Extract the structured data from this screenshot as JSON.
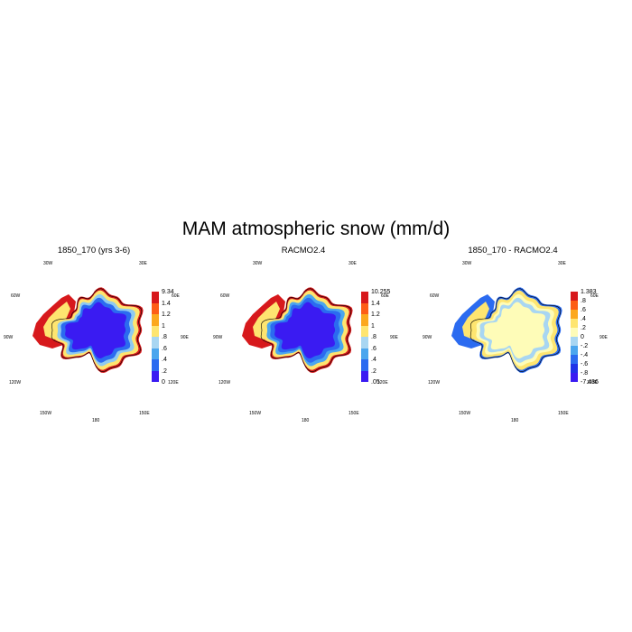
{
  "title": "MAM atmospheric snow (mm/d)",
  "lon_labels": {
    "n30w": "30W",
    "n30e": "30E",
    "w60": "60W",
    "e60": "60E",
    "w90": "90W",
    "e90": "90E",
    "w120": "120W",
    "e120": "120E",
    "s150w": "150W",
    "s150e": "150E",
    "s180": "180"
  },
  "panels": [
    {
      "title": "1850_170 (yrs 3-6)",
      "colorbar": {
        "labels": [
          "9.34",
          "1.4",
          "1.2",
          "1",
          ".8",
          ".6",
          ".4",
          ".2",
          "0"
        ],
        "colors": [
          "#d7191c",
          "#fd5d16",
          "#fca81d",
          "#fee570",
          "#a8d6f2",
          "#4ba6ee",
          "#2b6bf0",
          "#3a1bf2"
        ]
      },
      "fill": {
        "interior": "#3a1bf2",
        "ring1": "#2b6bf0",
        "ring2": "#8fcaf0",
        "ring3": "#fee570",
        "coast": "#d7191c"
      }
    },
    {
      "title": "RACMO2.4",
      "colorbar": {
        "labels": [
          "10.255",
          "1.4",
          "1.2",
          "1",
          ".8",
          ".6",
          ".4",
          ".2",
          ".05"
        ],
        "colors": [
          "#d7191c",
          "#fd5d16",
          "#fca81d",
          "#fee570",
          "#a8d6f2",
          "#4ba6ee",
          "#2b6bf0",
          "#3a1bf2"
        ]
      },
      "fill": {
        "interior": "#3a1bf2",
        "ring1": "#2b6bf0",
        "ring2": "#4ba6ee",
        "ring3": "#fee570",
        "coast": "#d7191c"
      }
    },
    {
      "title": "1850_170 - RACMO2.4",
      "colorbar": {
        "labels": [
          "1.383",
          ".8",
          ".6",
          ".4",
          ".2",
          "0",
          "-.2",
          "-.4",
          "-.6",
          "-.8",
          "-7.436"
        ],
        "colors": [
          "#d7191c",
          "#fd5d16",
          "#fca81d",
          "#fee570",
          "#fefcb8",
          "#a8d6f2",
          "#4ba6ee",
          "#2b6bf0",
          "#1f32e8",
          "#3a1bf2"
        ]
      },
      "fill": {
        "interior": "#fefcb8",
        "ring1": "#a8d6f2",
        "ring2": "#fefcb8",
        "ring3": "#fee570",
        "coast": "#2b6bf0"
      }
    }
  ]
}
